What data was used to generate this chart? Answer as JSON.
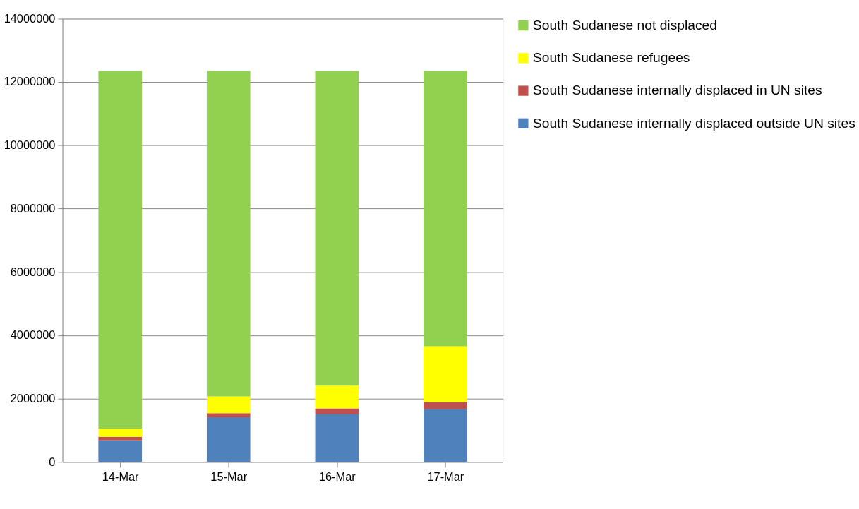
{
  "chart_data": {
    "type": "bar",
    "stacked": true,
    "categories": [
      "14-Mar",
      "15-Mar",
      "16-Mar",
      "17-Mar"
    ],
    "series": [
      {
        "name": "South Sudanese internally displaced outside UN sites",
        "color": "#4f81bd",
        "values": [
          680000,
          1410000,
          1510000,
          1670000
        ]
      },
      {
        "name": "South Sudanese internally displaced in UN sites",
        "color": "#c0504d",
        "values": [
          110000,
          130000,
          180000,
          220000
        ]
      },
      {
        "name": "South Sudanese refugees",
        "color": "#ffff00",
        "values": [
          260000,
          530000,
          720000,
          1760000
        ]
      },
      {
        "name": "South Sudanese not displaced",
        "color": "#92d050",
        "values": [
          11300000,
          10280000,
          9940000,
          8700000
        ]
      }
    ],
    "ylim": [
      0,
      14000000
    ],
    "yticks": [
      0,
      2000000,
      4000000,
      6000000,
      8000000,
      10000000,
      12000000,
      14000000
    ],
    "grid": "y",
    "legend": "right"
  }
}
